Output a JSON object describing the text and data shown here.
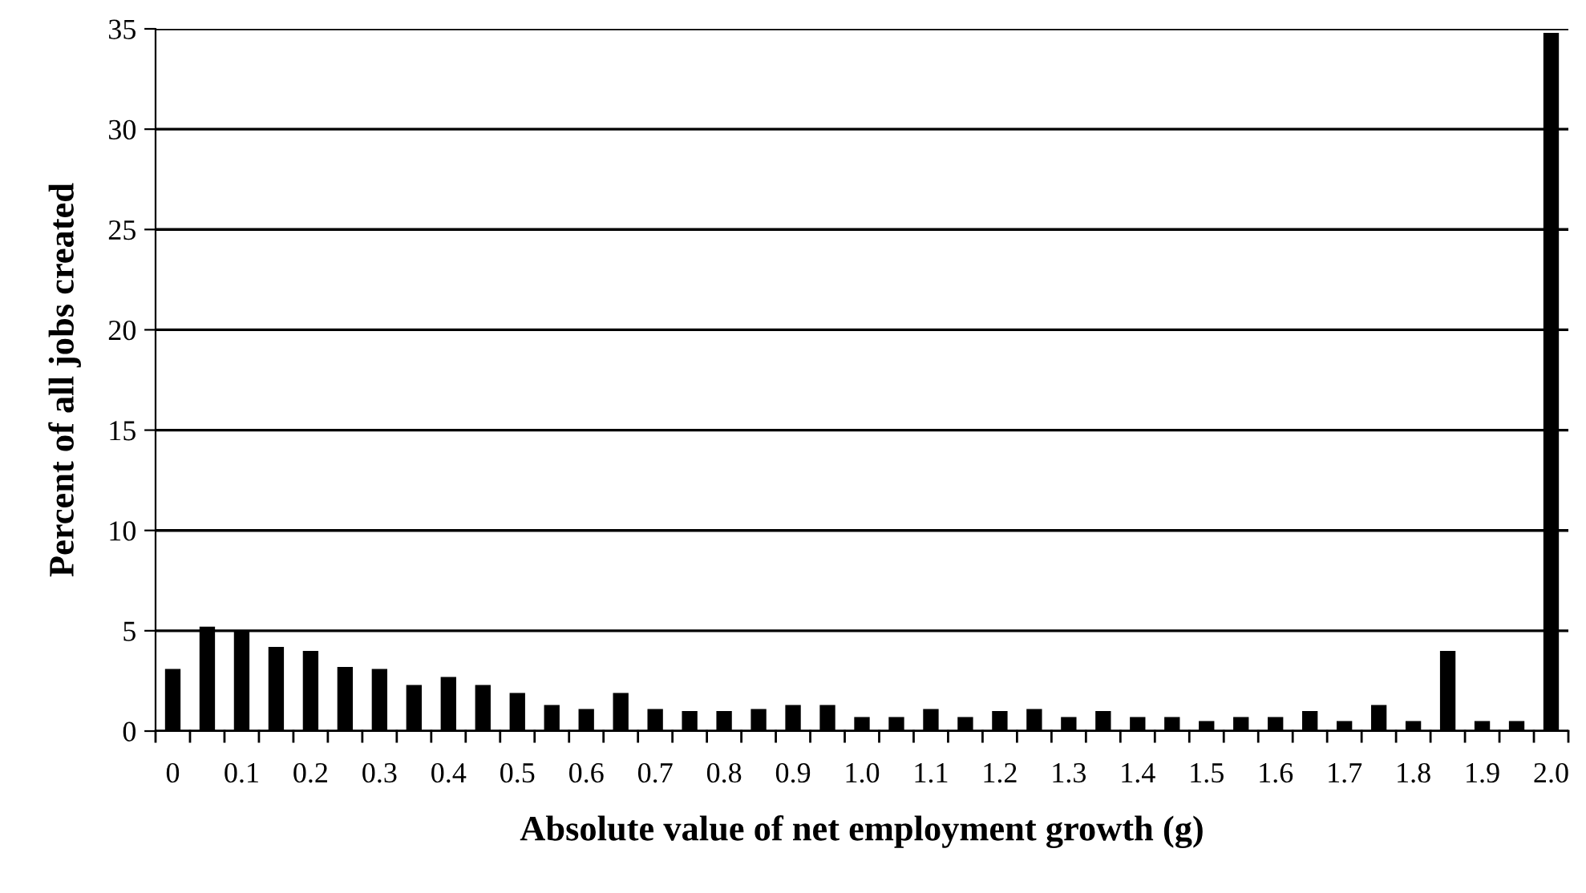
{
  "chart_data": {
    "type": "bar",
    "xlabel": "Absolute value of net employment growth (g)",
    "ylabel": "Percent of all jobs created",
    "categories": [
      "0",
      null,
      "0.1",
      null,
      "0.2",
      null,
      "0.3",
      null,
      "0.4",
      null,
      "0.5",
      null,
      "0.6",
      null,
      "0.7",
      null,
      "0.8",
      null,
      "0.9",
      null,
      "1.0",
      null,
      "1.1",
      null,
      "1.2",
      null,
      "1.3",
      null,
      "1.4",
      null,
      "1.5",
      null,
      "1.6",
      null,
      "1.7",
      null,
      "1.8",
      null,
      "1.9",
      null,
      "2.0"
    ],
    "values": [
      3.1,
      5.2,
      5.0,
      4.2,
      4.0,
      3.2,
      3.1,
      2.3,
      2.7,
      2.3,
      1.9,
      1.3,
      1.1,
      1.9,
      1.1,
      1.0,
      1.0,
      1.1,
      1.3,
      1.3,
      0.7,
      0.7,
      1.1,
      0.7,
      1.0,
      1.1,
      0.7,
      1.0,
      0.7,
      0.7,
      0.5,
      0.7,
      0.7,
      1.0,
      0.5,
      1.3,
      0.5,
      4.0,
      0.5,
      0.5,
      34.8
    ],
    "color": "#000000",
    "ylim": [
      0,
      35
    ],
    "yticks": [
      0,
      5,
      10,
      15,
      20,
      25,
      30,
      35
    ],
    "grid": "y",
    "legend": false
  }
}
